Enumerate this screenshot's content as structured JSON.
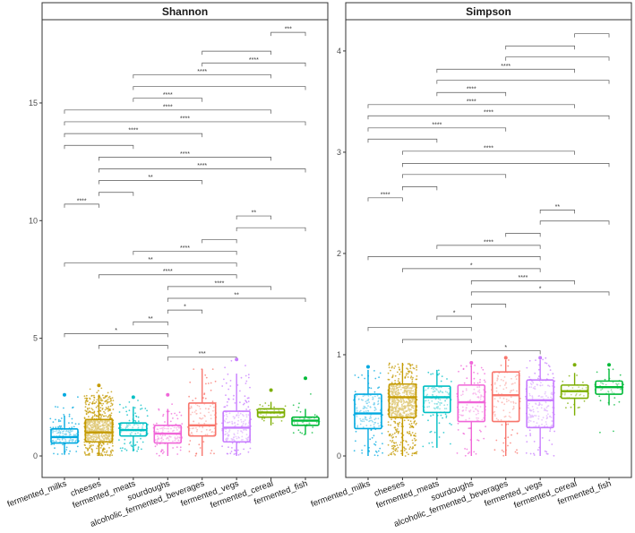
{
  "chart_data": [
    {
      "type": "box",
      "title": "Shannon",
      "ylim": [
        0,
        18.5
      ],
      "yticks": [
        0,
        5,
        10,
        15
      ],
      "categories": [
        "fermented_milks",
        "cheeses",
        "fermented_meats",
        "sourdoughs",
        "alcoholic_fermented_beverages",
        "fermented_vegs",
        "fermented_cereal",
        "fermented_fish"
      ],
      "boxes": [
        {
          "category": "fermented_milks",
          "color": "#00A9E0",
          "min": 0.05,
          "q1": 0.55,
          "median": 0.8,
          "q3": 1.15,
          "max": 1.7,
          "point_low": 0.0,
          "point_high": 2.6,
          "n_points": 160
        },
        {
          "category": "cheeses",
          "color": "#C49A00",
          "min": 0.0,
          "q1": 0.6,
          "median": 1.0,
          "q3": 1.55,
          "max": 2.6,
          "point_low": 0.0,
          "point_high": 3.0,
          "n_points": 700
        },
        {
          "category": "fermented_meats",
          "color": "#00BFC4",
          "min": 0.2,
          "q1": 0.85,
          "median": 1.1,
          "q3": 1.4,
          "max": 2.1,
          "point_low": 0.2,
          "point_high": 2.5,
          "n_points": 120
        },
        {
          "category": "sourdoughs",
          "color": "#F066D8",
          "min": 0.0,
          "q1": 0.55,
          "median": 0.95,
          "q3": 1.3,
          "max": 2.0,
          "point_low": 0.0,
          "point_high": 2.6,
          "n_points": 130
        },
        {
          "category": "alcoholic_fermented_beverages",
          "color": "#F8766D",
          "min": 0.0,
          "q1": 0.85,
          "median": 1.3,
          "q3": 2.25,
          "max": 3.7,
          "point_low": 0.0,
          "point_high": 3.8,
          "n_points": 110
        },
        {
          "category": "fermented_vegs",
          "color": "#C77CFF",
          "min": 0.0,
          "q1": 0.6,
          "median": 1.2,
          "q3": 1.9,
          "max": 3.5,
          "point_low": 0.0,
          "point_high": 4.1,
          "n_points": 200
        },
        {
          "category": "fermented_cereal",
          "color": "#7CAE00",
          "min": 1.3,
          "q1": 1.65,
          "median": 1.85,
          "q3": 2.0,
          "max": 2.3,
          "point_low": 1.3,
          "point_high": 2.8,
          "n_points": 40
        },
        {
          "category": "fermented_fish",
          "color": "#00BA38",
          "min": 0.9,
          "q1": 1.3,
          "median": 1.5,
          "q3": 1.65,
          "max": 2.0,
          "point_low": 0.7,
          "point_high": 3.3,
          "n_points": 50
        }
      ],
      "comparisons": [
        {
          "from": 7,
          "to": 8,
          "y": 18.0,
          "label": "***"
        },
        {
          "from": 5,
          "to": 7,
          "y": 17.2,
          "label": ""
        },
        {
          "from": 5,
          "to": 8,
          "y": 16.7,
          "label": "****"
        },
        {
          "from": 3,
          "to": 7,
          "y": 16.2,
          "label": "****"
        },
        {
          "from": 3,
          "to": 8,
          "y": 15.7,
          "label": ""
        },
        {
          "from": 3,
          "to": 5,
          "y": 15.2,
          "label": "****"
        },
        {
          "from": 1,
          "to": 7,
          "y": 14.7,
          "label": "****"
        },
        {
          "from": 1,
          "to": 8,
          "y": 14.2,
          "label": "****"
        },
        {
          "from": 1,
          "to": 5,
          "y": 13.7,
          "label": "****"
        },
        {
          "from": 1,
          "to": 3,
          "y": 13.2,
          "label": ""
        },
        {
          "from": 2,
          "to": 7,
          "y": 12.7,
          "label": "****"
        },
        {
          "from": 2,
          "to": 8,
          "y": 12.2,
          "label": "****"
        },
        {
          "from": 2,
          "to": 5,
          "y": 11.7,
          "label": "**"
        },
        {
          "from": 2,
          "to": 3,
          "y": 11.2,
          "label": ""
        },
        {
          "from": 1,
          "to": 2,
          "y": 10.7,
          "label": "****"
        },
        {
          "from": 6,
          "to": 7,
          "y": 10.2,
          "label": "**"
        },
        {
          "from": 6,
          "to": 8,
          "y": 9.7,
          "label": ""
        },
        {
          "from": 5,
          "to": 6,
          "y": 9.2,
          "label": ""
        },
        {
          "from": 3,
          "to": 6,
          "y": 8.7,
          "label": "****"
        },
        {
          "from": 1,
          "to": 6,
          "y": 8.2,
          "label": "**"
        },
        {
          "from": 2,
          "to": 6,
          "y": 7.7,
          "label": "****"
        },
        {
          "from": 4,
          "to": 7,
          "y": 7.2,
          "label": "****"
        },
        {
          "from": 4,
          "to": 8,
          "y": 6.7,
          "label": "**"
        },
        {
          "from": 4,
          "to": 5,
          "y": 6.2,
          "label": "*"
        },
        {
          "from": 3,
          "to": 4,
          "y": 5.7,
          "label": "**"
        },
        {
          "from": 1,
          "to": 4,
          "y": 5.2,
          "label": "*"
        },
        {
          "from": 2,
          "to": 4,
          "y": 4.7,
          "label": ""
        },
        {
          "from": 4,
          "to": 6,
          "y": 4.2,
          "label": "***"
        }
      ]
    },
    {
      "type": "box",
      "title": "Simpson",
      "ylim": [
        0,
        4.3
      ],
      "yticks": [
        0,
        1,
        2,
        3,
        4
      ],
      "categories": [
        "fermented_milks",
        "cheeses",
        "fermented_meats",
        "sourdoughs",
        "alcoholic_fermented_beverages",
        "fermented_vegs",
        "fermented_cereal",
        "fermented_fish"
      ],
      "boxes": [
        {
          "category": "fermented_milks",
          "color": "#00A9E0",
          "min": 0.0,
          "q1": 0.27,
          "median": 0.42,
          "q3": 0.61,
          "max": 0.85,
          "point_low": 0.0,
          "point_high": 0.88,
          "n_points": 160
        },
        {
          "category": "cheeses",
          "color": "#C49A00",
          "min": 0.0,
          "q1": 0.38,
          "median": 0.58,
          "q3": 0.71,
          "max": 0.92,
          "point_low": 0.0,
          "point_high": 0.93,
          "n_points": 700
        },
        {
          "category": "fermented_meats",
          "color": "#00BFC4",
          "min": 0.08,
          "q1": 0.43,
          "median": 0.58,
          "q3": 0.69,
          "max": 0.85,
          "point_low": 0.05,
          "point_high": 0.86,
          "n_points": 120
        },
        {
          "category": "sourdoughs",
          "color": "#F066D8",
          "min": 0.0,
          "q1": 0.34,
          "median": 0.53,
          "q3": 0.7,
          "max": 0.9,
          "point_low": 0.0,
          "point_high": 0.92,
          "n_points": 130
        },
        {
          "category": "alcoholic_fermented_beverages",
          "color": "#F8766D",
          "min": 0.0,
          "q1": 0.34,
          "median": 0.6,
          "q3": 0.83,
          "max": 0.95,
          "point_low": 0.0,
          "point_high": 0.97,
          "n_points": 110
        },
        {
          "category": "fermented_vegs",
          "color": "#C77CFF",
          "min": 0.0,
          "q1": 0.28,
          "median": 0.55,
          "q3": 0.75,
          "max": 0.95,
          "point_low": 0.0,
          "point_high": 0.97,
          "n_points": 200
        },
        {
          "category": "fermented_cereal",
          "color": "#7CAE00",
          "min": 0.4,
          "q1": 0.57,
          "median": 0.64,
          "q3": 0.7,
          "max": 0.82,
          "point_low": 0.4,
          "point_high": 0.9,
          "n_points": 40
        },
        {
          "category": "fermented_fish",
          "color": "#00BA38",
          "min": 0.5,
          "q1": 0.61,
          "median": 0.68,
          "q3": 0.74,
          "max": 0.86,
          "point_low": 0.2,
          "point_high": 0.9,
          "n_points": 50
        }
      ],
      "comparisons": [
        {
          "from": 7,
          "to": 8,
          "y": 4.17,
          "label": ""
        },
        {
          "from": 5,
          "to": 7,
          "y": 4.05,
          "label": ""
        },
        {
          "from": 5,
          "to": 8,
          "y": 3.94,
          "label": ""
        },
        {
          "from": 3,
          "to": 7,
          "y": 3.82,
          "label": "****"
        },
        {
          "from": 3,
          "to": 8,
          "y": 3.71,
          "label": ""
        },
        {
          "from": 3,
          "to": 5,
          "y": 3.59,
          "label": "****"
        },
        {
          "from": 1,
          "to": 7,
          "y": 3.47,
          "label": "****"
        },
        {
          "from": 1,
          "to": 8,
          "y": 3.36,
          "label": "****"
        },
        {
          "from": 1,
          "to": 5,
          "y": 3.24,
          "label": "****"
        },
        {
          "from": 1,
          "to": 3,
          "y": 3.13,
          "label": ""
        },
        {
          "from": 2,
          "to": 7,
          "y": 3.01,
          "label": "****"
        },
        {
          "from": 2,
          "to": 8,
          "y": 2.89,
          "label": ""
        },
        {
          "from": 2,
          "to": 5,
          "y": 2.78,
          "label": ""
        },
        {
          "from": 2,
          "to": 3,
          "y": 2.66,
          "label": ""
        },
        {
          "from": 1,
          "to": 2,
          "y": 2.55,
          "label": "****"
        },
        {
          "from": 6,
          "to": 7,
          "y": 2.43,
          "label": "**"
        },
        {
          "from": 6,
          "to": 8,
          "y": 2.32,
          "label": ""
        },
        {
          "from": 5,
          "to": 6,
          "y": 2.2,
          "label": ""
        },
        {
          "from": 3,
          "to": 6,
          "y": 2.08,
          "label": "****"
        },
        {
          "from": 1,
          "to": 6,
          "y": 1.97,
          "label": ""
        },
        {
          "from": 2,
          "to": 6,
          "y": 1.85,
          "label": "*"
        },
        {
          "from": 4,
          "to": 7,
          "y": 1.73,
          "label": "****"
        },
        {
          "from": 4,
          "to": 8,
          "y": 1.62,
          "label": "*"
        },
        {
          "from": 4,
          "to": 5,
          "y": 1.5,
          "label": ""
        },
        {
          "from": 3,
          "to": 4,
          "y": 1.38,
          "label": "*"
        },
        {
          "from": 1,
          "to": 4,
          "y": 1.27,
          "label": ""
        },
        {
          "from": 2,
          "to": 4,
          "y": 1.15,
          "label": ""
        },
        {
          "from": 4,
          "to": 6,
          "y": 1.04,
          "label": "*"
        }
      ]
    }
  ]
}
